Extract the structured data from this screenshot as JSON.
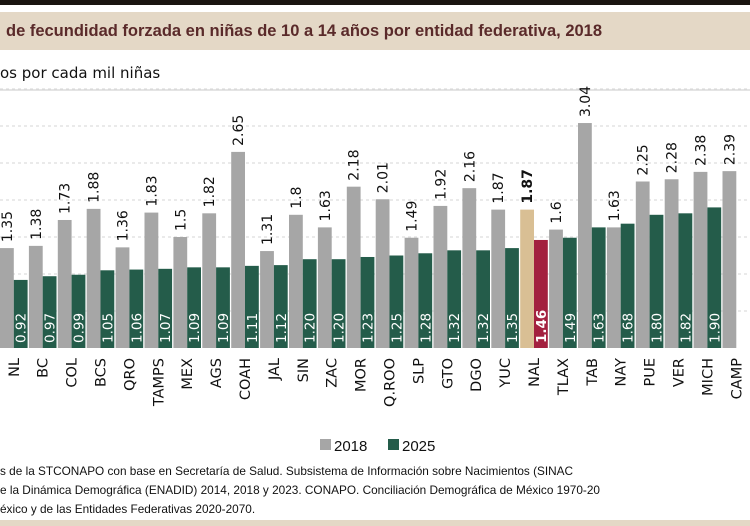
{
  "title": "de fecundidad forzada en niñas de 10 a 14 años por entidad federativa, 2018",
  "chart_data": {
    "type": "bar",
    "title": "de fecundidad forzada en niñas de 10 a 14 años por entidad federativa, 2018",
    "ylabel": "os por cada mil niñas",
    "ylim": [
      0,
      3.5
    ],
    "grid": true,
    "legend_position": "bottom",
    "categories": [
      "NL",
      "BC",
      "COL",
      "BCS",
      "QRO",
      "TAMPS",
      "MEX",
      "AGS",
      "COAH",
      "JAL",
      "SIN",
      "ZAC",
      "MOR",
      "Q.ROO",
      "SLP",
      "GTO",
      "DGO",
      "YUC",
      "NAL",
      "TLAX",
      "TAB",
      "NAY",
      "PUE",
      "VER",
      "MICH",
      "CAMP"
    ],
    "series": [
      {
        "name": "2018",
        "color": "#a6a6a6",
        "values": [
          1.35,
          1.38,
          1.73,
          1.88,
          1.36,
          1.83,
          1.5,
          1.82,
          2.65,
          1.31,
          1.8,
          1.63,
          2.18,
          2.01,
          1.49,
          1.92,
          2.16,
          1.87,
          1.87,
          1.6,
          3.04,
          1.63,
          2.25,
          2.28,
          2.38,
          2.39
        ],
        "labels": [
          "1.35",
          "1.38",
          "1.73",
          "1.88",
          "1.36",
          "1.83",
          "1.5",
          "1.82",
          "2.65",
          "1.31",
          "1.8",
          "1.63",
          "2.18",
          "2.01",
          "1.49",
          "1.92",
          "2.16",
          "1.87",
          "1.87",
          "1.6",
          "3.04",
          "1.63",
          "2.25",
          "2.28",
          "2.38",
          "2.39"
        ]
      },
      {
        "name": "2025",
        "color": "#245c4a",
        "values": [
          0.92,
          0.97,
          0.99,
          1.05,
          1.06,
          1.07,
          1.09,
          1.09,
          1.11,
          1.12,
          1.2,
          1.2,
          1.23,
          1.25,
          1.28,
          1.32,
          1.32,
          1.35,
          1.46,
          1.49,
          1.63,
          1.68,
          1.8,
          1.82,
          1.9,
          null
        ],
        "labels": [
          "0.92",
          "0.97",
          "0.99",
          "1.05",
          "1.06",
          "1.07",
          "1.09",
          "1.09",
          "1.11",
          "1.12",
          "1.20",
          "1.20",
          "1.23",
          "1.25",
          "1.28",
          "1.32",
          "1.32",
          "1.35",
          "1.46",
          "1.49",
          "1.63",
          "1.68",
          "1.80",
          "1.82",
          "1.90",
          null
        ]
      }
    ],
    "highlight": {
      "category": "NAL",
      "color_2018": "#d9bf94",
      "color_2025": "#a3203f"
    }
  },
  "legend": {
    "items": [
      "2018",
      "2025"
    ]
  },
  "source": [
    "s de la STCONAPO con base en Secretaría de Salud. Subsistema de Información sobre Nacimientos (SINAC",
    "e la Dinámica Demográfica (ENADID) 2014, 2018 y 2023. CONAPO. Conciliación Demográfica de México 1970-20",
    "éxico y de las Entidades Federativas 2020-2070."
  ]
}
